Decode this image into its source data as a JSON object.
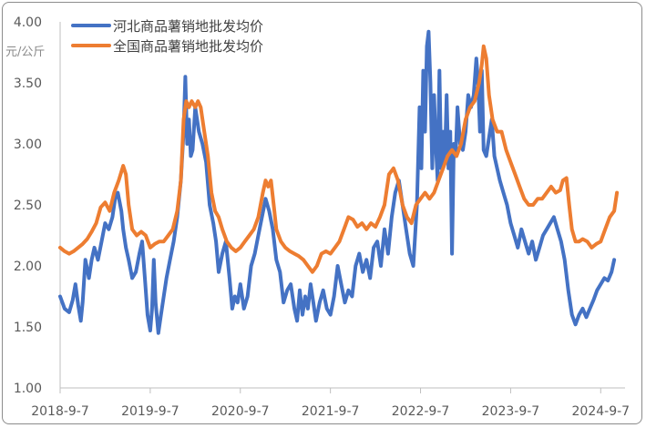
{
  "chart_data": {
    "type": "line",
    "title": "",
    "xlabel": "",
    "ylabel": "元/公斤",
    "ylim": [
      1.0,
      4.0
    ],
    "yticks": [
      "1.00",
      "1.50",
      "2.00",
      "2.50",
      "3.00",
      "3.50",
      "4.00"
    ],
    "xticks": [
      "2018-9-7",
      "2019-9-7",
      "2020-9-7",
      "2021-9-7",
      "2022-9-7",
      "2023-9-7",
      "2024-9-7"
    ],
    "x_unit": "years after 2018-9-7",
    "grid": false,
    "legend_position": "top-left",
    "series": [
      {
        "name": "河北商品薯销地批发均价",
        "color": "#4472C4",
        "points": [
          [
            0.0,
            1.75
          ],
          [
            0.05,
            1.65
          ],
          [
            0.1,
            1.62
          ],
          [
            0.14,
            1.72
          ],
          [
            0.17,
            1.85
          ],
          [
            0.2,
            1.68
          ],
          [
            0.23,
            1.55
          ],
          [
            0.25,
            1.7
          ],
          [
            0.28,
            2.05
          ],
          [
            0.32,
            1.9
          ],
          [
            0.35,
            2.05
          ],
          [
            0.38,
            2.15
          ],
          [
            0.42,
            2.05
          ],
          [
            0.46,
            2.2
          ],
          [
            0.5,
            2.35
          ],
          [
            0.54,
            2.3
          ],
          [
            0.58,
            2.4
          ],
          [
            0.61,
            2.55
          ],
          [
            0.64,
            2.6
          ],
          [
            0.68,
            2.45
          ],
          [
            0.7,
            2.3
          ],
          [
            0.73,
            2.15
          ],
          [
            0.76,
            2.05
          ],
          [
            0.8,
            1.9
          ],
          [
            0.84,
            1.95
          ],
          [
            0.88,
            2.1
          ],
          [
            0.91,
            2.2
          ],
          [
            0.94,
            1.9
          ],
          [
            0.97,
            1.6
          ],
          [
            1.0,
            1.47
          ],
          [
            1.02,
            1.65
          ],
          [
            1.04,
            2.05
          ],
          [
            1.06,
            1.7
          ],
          [
            1.09,
            1.45
          ],
          [
            1.12,
            1.6
          ],
          [
            1.15,
            1.75
          ],
          [
            1.18,
            1.9
          ],
          [
            1.22,
            2.05
          ],
          [
            1.26,
            2.2
          ],
          [
            1.3,
            2.4
          ],
          [
            1.34,
            2.7
          ],
          [
            1.37,
            3.1
          ],
          [
            1.39,
            3.55
          ],
          [
            1.41,
            3.0
          ],
          [
            1.43,
            3.2
          ],
          [
            1.45,
            2.9
          ],
          [
            1.47,
            2.95
          ],
          [
            1.5,
            3.3
          ],
          [
            1.54,
            3.1
          ],
          [
            1.58,
            3.0
          ],
          [
            1.62,
            2.85
          ],
          [
            1.66,
            2.5
          ],
          [
            1.7,
            2.35
          ],
          [
            1.73,
            2.2
          ],
          [
            1.76,
            1.95
          ],
          [
            1.8,
            2.1
          ],
          [
            1.84,
            2.2
          ],
          [
            1.88,
            1.9
          ],
          [
            1.91,
            1.65
          ],
          [
            1.94,
            1.75
          ],
          [
            1.97,
            1.7
          ],
          [
            2.0,
            1.85
          ],
          [
            2.04,
            1.65
          ],
          [
            2.08,
            1.75
          ],
          [
            2.12,
            2.0
          ],
          [
            2.16,
            2.1
          ],
          [
            2.2,
            2.25
          ],
          [
            2.24,
            2.4
          ],
          [
            2.28,
            2.55
          ],
          [
            2.32,
            2.45
          ],
          [
            2.36,
            2.3
          ],
          [
            2.4,
            2.05
          ],
          [
            2.44,
            1.95
          ],
          [
            2.48,
            1.7
          ],
          [
            2.52,
            1.8
          ],
          [
            2.56,
            1.85
          ],
          [
            2.6,
            1.65
          ],
          [
            2.63,
            1.55
          ],
          [
            2.66,
            1.8
          ],
          [
            2.69,
            1.6
          ],
          [
            2.72,
            1.75
          ],
          [
            2.75,
            1.65
          ],
          [
            2.78,
            1.85
          ],
          [
            2.81,
            1.7
          ],
          [
            2.84,
            1.55
          ],
          [
            2.88,
            1.7
          ],
          [
            2.92,
            1.8
          ],
          [
            2.96,
            1.65
          ],
          [
            3.0,
            1.6
          ],
          [
            3.04,
            1.75
          ],
          [
            3.08,
            2.0
          ],
          [
            3.12,
            1.85
          ],
          [
            3.16,
            1.7
          ],
          [
            3.2,
            1.8
          ],
          [
            3.24,
            1.75
          ],
          [
            3.28,
            2.0
          ],
          [
            3.32,
            2.1
          ],
          [
            3.36,
            1.95
          ],
          [
            3.4,
            2.05
          ],
          [
            3.44,
            1.9
          ],
          [
            3.48,
            2.15
          ],
          [
            3.52,
            2.2
          ],
          [
            3.56,
            2.0
          ],
          [
            3.6,
            2.3
          ],
          [
            3.64,
            2.1
          ],
          [
            3.68,
            2.4
          ],
          [
            3.72,
            2.6
          ],
          [
            3.76,
            2.7
          ],
          [
            3.8,
            2.5
          ],
          [
            3.84,
            2.3
          ],
          [
            3.88,
            2.1
          ],
          [
            3.92,
            2.0
          ],
          [
            3.96,
            2.5
          ],
          [
            3.99,
            3.3
          ],
          [
            4.01,
            2.8
          ],
          [
            4.03,
            3.6
          ],
          [
            4.05,
            3.1
          ],
          [
            4.07,
            3.8
          ],
          [
            4.09,
            3.92
          ],
          [
            4.11,
            3.5
          ],
          [
            4.13,
            2.8
          ],
          [
            4.15,
            3.4
          ],
          [
            4.17,
            3.0
          ],
          [
            4.19,
            2.7
          ],
          [
            4.21,
            3.6
          ],
          [
            4.23,
            2.8
          ],
          [
            4.25,
            3.1
          ],
          [
            4.27,
            2.85
          ],
          [
            4.29,
            3.4
          ],
          [
            4.31,
            2.8
          ],
          [
            4.33,
            3.1
          ],
          [
            4.35,
            2.1
          ],
          [
            4.37,
            3.0
          ],
          [
            4.39,
            2.9
          ],
          [
            4.41,
            3.3
          ],
          [
            4.44,
            3.0
          ],
          [
            4.47,
            2.95
          ],
          [
            4.5,
            3.1
          ],
          [
            4.53,
            3.4
          ],
          [
            4.56,
            3.3
          ],
          [
            4.59,
            3.4
          ],
          [
            4.62,
            3.7
          ],
          [
            4.64,
            3.5
          ],
          [
            4.66,
            3.1
          ],
          [
            4.68,
            3.6
          ],
          [
            4.7,
            2.95
          ],
          [
            4.73,
            2.9
          ],
          [
            4.76,
            3.05
          ],
          [
            4.79,
            3.2
          ],
          [
            4.82,
            2.9
          ],
          [
            4.85,
            2.8
          ],
          [
            4.88,
            2.7
          ],
          [
            4.92,
            2.6
          ],
          [
            4.96,
            2.5
          ],
          [
            5.0,
            2.35
          ],
          [
            5.04,
            2.25
          ],
          [
            5.08,
            2.15
          ],
          [
            5.12,
            2.3
          ],
          [
            5.16,
            2.2
          ],
          [
            5.2,
            2.1
          ],
          [
            5.24,
            2.2
          ],
          [
            5.28,
            2.05
          ],
          [
            5.32,
            2.15
          ],
          [
            5.36,
            2.25
          ],
          [
            5.4,
            2.3
          ],
          [
            5.44,
            2.35
          ],
          [
            5.48,
            2.4
          ],
          [
            5.52,
            2.3
          ],
          [
            5.56,
            2.2
          ],
          [
            5.6,
            2.05
          ],
          [
            5.64,
            1.8
          ],
          [
            5.68,
            1.6
          ],
          [
            5.72,
            1.52
          ],
          [
            5.76,
            1.6
          ],
          [
            5.8,
            1.65
          ],
          [
            5.84,
            1.58
          ],
          [
            5.88,
            1.65
          ],
          [
            5.92,
            1.72
          ],
          [
            5.96,
            1.8
          ],
          [
            6.0,
            1.85
          ],
          [
            6.04,
            1.9
          ],
          [
            6.08,
            1.88
          ],
          [
            6.12,
            1.95
          ],
          [
            6.15,
            2.05
          ]
        ]
      },
      {
        "name": "全国商品薯销地批发均价",
        "color": "#ED7D31",
        "points": [
          [
            0.0,
            2.15
          ],
          [
            0.05,
            2.12
          ],
          [
            0.1,
            2.1
          ],
          [
            0.15,
            2.12
          ],
          [
            0.2,
            2.15
          ],
          [
            0.25,
            2.18
          ],
          [
            0.3,
            2.22
          ],
          [
            0.35,
            2.28
          ],
          [
            0.4,
            2.35
          ],
          [
            0.45,
            2.48
          ],
          [
            0.5,
            2.52
          ],
          [
            0.55,
            2.45
          ],
          [
            0.6,
            2.6
          ],
          [
            0.65,
            2.7
          ],
          [
            0.7,
            2.82
          ],
          [
            0.73,
            2.75
          ],
          [
            0.76,
            2.5
          ],
          [
            0.8,
            2.3
          ],
          [
            0.85,
            2.25
          ],
          [
            0.9,
            2.28
          ],
          [
            0.95,
            2.25
          ],
          [
            1.0,
            2.15
          ],
          [
            1.05,
            2.18
          ],
          [
            1.1,
            2.2
          ],
          [
            1.15,
            2.2
          ],
          [
            1.2,
            2.25
          ],
          [
            1.25,
            2.3
          ],
          [
            1.3,
            2.45
          ],
          [
            1.34,
            2.7
          ],
          [
            1.37,
            3.2
          ],
          [
            1.4,
            3.35
          ],
          [
            1.43,
            3.3
          ],
          [
            1.46,
            3.35
          ],
          [
            1.5,
            3.3
          ],
          [
            1.53,
            3.35
          ],
          [
            1.56,
            3.3
          ],
          [
            1.6,
            3.1
          ],
          [
            1.64,
            2.9
          ],
          [
            1.68,
            2.6
          ],
          [
            1.72,
            2.45
          ],
          [
            1.76,
            2.4
          ],
          [
            1.8,
            2.3
          ],
          [
            1.85,
            2.2
          ],
          [
            1.9,
            2.15
          ],
          [
            1.95,
            2.12
          ],
          [
            2.0,
            2.15
          ],
          [
            2.05,
            2.2
          ],
          [
            2.1,
            2.25
          ],
          [
            2.15,
            2.3
          ],
          [
            2.2,
            2.4
          ],
          [
            2.25,
            2.6
          ],
          [
            2.28,
            2.7
          ],
          [
            2.31,
            2.65
          ],
          [
            2.34,
            2.7
          ],
          [
            2.37,
            2.5
          ],
          [
            2.4,
            2.3
          ],
          [
            2.45,
            2.2
          ],
          [
            2.5,
            2.15
          ],
          [
            2.55,
            2.12
          ],
          [
            2.6,
            2.1
          ],
          [
            2.65,
            2.08
          ],
          [
            2.7,
            2.05
          ],
          [
            2.75,
            2.0
          ],
          [
            2.8,
            1.95
          ],
          [
            2.85,
            2.0
          ],
          [
            2.9,
            2.1
          ],
          [
            2.95,
            2.12
          ],
          [
            3.0,
            2.1
          ],
          [
            3.05,
            2.15
          ],
          [
            3.1,
            2.2
          ],
          [
            3.15,
            2.3
          ],
          [
            3.2,
            2.4
          ],
          [
            3.25,
            2.38
          ],
          [
            3.3,
            2.32
          ],
          [
            3.35,
            2.35
          ],
          [
            3.4,
            2.3
          ],
          [
            3.45,
            2.35
          ],
          [
            3.5,
            2.32
          ],
          [
            3.55,
            2.4
          ],
          [
            3.6,
            2.5
          ],
          [
            3.65,
            2.75
          ],
          [
            3.7,
            2.8
          ],
          [
            3.75,
            2.7
          ],
          [
            3.8,
            2.5
          ],
          [
            3.85,
            2.4
          ],
          [
            3.9,
            2.35
          ],
          [
            3.95,
            2.5
          ],
          [
            4.0,
            2.55
          ],
          [
            4.05,
            2.6
          ],
          [
            4.1,
            2.55
          ],
          [
            4.15,
            2.6
          ],
          [
            4.2,
            2.7
          ],
          [
            4.25,
            2.8
          ],
          [
            4.3,
            2.9
          ],
          [
            4.35,
            2.95
          ],
          [
            4.4,
            2.9
          ],
          [
            4.45,
            3.0
          ],
          [
            4.5,
            3.2
          ],
          [
            4.55,
            3.3
          ],
          [
            4.6,
            3.35
          ],
          [
            4.65,
            3.5
          ],
          [
            4.68,
            3.65
          ],
          [
            4.7,
            3.8
          ],
          [
            4.73,
            3.7
          ],
          [
            4.76,
            3.4
          ],
          [
            4.8,
            3.2
          ],
          [
            4.85,
            3.1
          ],
          [
            4.9,
            3.1
          ],
          [
            4.95,
            2.95
          ],
          [
            5.0,
            2.85
          ],
          [
            5.05,
            2.75
          ],
          [
            5.1,
            2.65
          ],
          [
            5.15,
            2.55
          ],
          [
            5.2,
            2.5
          ],
          [
            5.25,
            2.5
          ],
          [
            5.3,
            2.55
          ],
          [
            5.35,
            2.55
          ],
          [
            5.4,
            2.6
          ],
          [
            5.45,
            2.65
          ],
          [
            5.5,
            2.6
          ],
          [
            5.55,
            2.62
          ],
          [
            5.58,
            2.7
          ],
          [
            5.62,
            2.72
          ],
          [
            5.65,
            2.5
          ],
          [
            5.68,
            2.3
          ],
          [
            5.72,
            2.2
          ],
          [
            5.76,
            2.2
          ],
          [
            5.8,
            2.22
          ],
          [
            5.85,
            2.2
          ],
          [
            5.9,
            2.15
          ],
          [
            5.95,
            2.18
          ],
          [
            6.0,
            2.2
          ],
          [
            6.05,
            2.3
          ],
          [
            6.1,
            2.4
          ],
          [
            6.15,
            2.45
          ],
          [
            6.18,
            2.6
          ]
        ]
      }
    ]
  }
}
